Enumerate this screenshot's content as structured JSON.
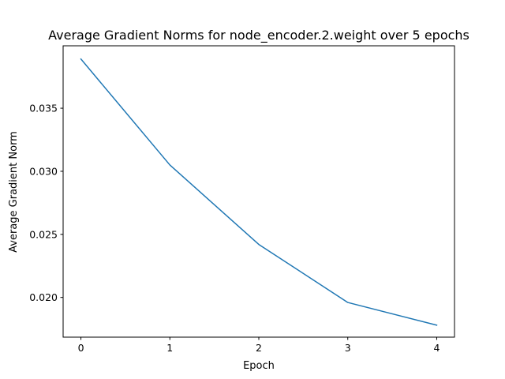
{
  "chart_data": {
    "type": "line",
    "title": "Average Gradient Norms for node_encoder.2.weight over 5 epochs",
    "xlabel": "Epoch",
    "ylabel": "Average Gradient Norm",
    "x": [
      0,
      1,
      2,
      3,
      4
    ],
    "series": [
      {
        "values": [
          0.0389,
          0.0305,
          0.0242,
          0.0196,
          0.0178
        ],
        "color": "#1f77b4"
      }
    ],
    "xlim": [
      -0.2,
      4.2
    ],
    "ylim": [
      0.01685,
      0.03995
    ],
    "xticks": [
      "0",
      "1",
      "2",
      "3",
      "4"
    ],
    "yticks": [
      "0.020",
      "0.025",
      "0.030",
      "0.035"
    ],
    "grid": false
  }
}
